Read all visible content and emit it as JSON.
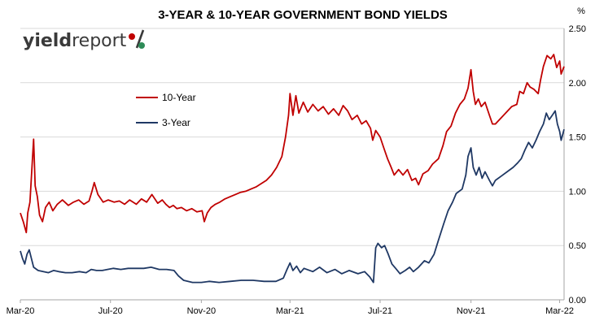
{
  "logo": {
    "part1": "yield",
    "part2": "report",
    "symbol": "%",
    "symbol_colors": [
      "#c00000",
      "#2e8b57"
    ]
  },
  "chart_data": {
    "type": "line",
    "title": "3-YEAR & 10-YEAR GOVERNMENT BOND YIELDS",
    "ylabel": "%",
    "ylim": [
      0,
      2.5
    ],
    "yticks": [
      "0.00",
      "0.50",
      "1.00",
      "1.50",
      "2.00",
      "2.50"
    ],
    "xticks": [
      "Mar-20",
      "Jul-20",
      "Nov-20",
      "Mar-21",
      "Jul-21",
      "Nov-21",
      "Mar-22"
    ],
    "xlim": [
      "2020-03-01",
      "2022-03-07"
    ],
    "grid": "horizontal",
    "legend_position": "upper-left",
    "series": [
      {
        "name": "10-Year",
        "color": "#c00000",
        "points": [
          [
            "2020-03-01",
            0.8
          ],
          [
            "2020-03-05",
            0.72
          ],
          [
            "2020-03-09",
            0.62
          ],
          [
            "2020-03-11",
            0.8
          ],
          [
            "2020-03-14",
            0.9
          ],
          [
            "2020-03-17",
            1.25
          ],
          [
            "2020-03-19",
            1.48
          ],
          [
            "2020-03-21",
            1.05
          ],
          [
            "2020-03-24",
            0.95
          ],
          [
            "2020-03-27",
            0.78
          ],
          [
            "2020-03-31",
            0.72
          ],
          [
            "2020-04-04",
            0.85
          ],
          [
            "2020-04-09",
            0.9
          ],
          [
            "2020-04-14",
            0.82
          ],
          [
            "2020-04-20",
            0.88
          ],
          [
            "2020-04-27",
            0.92
          ],
          [
            "2020-05-05",
            0.87
          ],
          [
            "2020-05-12",
            0.9
          ],
          [
            "2020-05-19",
            0.92
          ],
          [
            "2020-05-26",
            0.88
          ],
          [
            "2020-06-02",
            0.91
          ],
          [
            "2020-06-06",
            1.0
          ],
          [
            "2020-06-09",
            1.08
          ],
          [
            "2020-06-14",
            0.97
          ],
          [
            "2020-06-21",
            0.9
          ],
          [
            "2020-06-28",
            0.92
          ],
          [
            "2020-07-06",
            0.9
          ],
          [
            "2020-07-13",
            0.91
          ],
          [
            "2020-07-20",
            0.88
          ],
          [
            "2020-07-27",
            0.92
          ],
          [
            "2020-08-05",
            0.88
          ],
          [
            "2020-08-12",
            0.93
          ],
          [
            "2020-08-19",
            0.9
          ],
          [
            "2020-08-26",
            0.97
          ],
          [
            "2020-09-03",
            0.89
          ],
          [
            "2020-09-09",
            0.92
          ],
          [
            "2020-09-14",
            0.88
          ],
          [
            "2020-09-19",
            0.85
          ],
          [
            "2020-09-24",
            0.87
          ],
          [
            "2020-09-29",
            0.84
          ],
          [
            "2020-10-05",
            0.85
          ],
          [
            "2020-10-12",
            0.82
          ],
          [
            "2020-10-19",
            0.84
          ],
          [
            "2020-10-26",
            0.81
          ],
          [
            "2020-11-02",
            0.82
          ],
          [
            "2020-11-05",
            0.72
          ],
          [
            "2020-11-09",
            0.8
          ],
          [
            "2020-11-14",
            0.85
          ],
          [
            "2020-11-20",
            0.88
          ],
          [
            "2020-11-26",
            0.9
          ],
          [
            "2020-12-03",
            0.93
          ],
          [
            "2020-12-10",
            0.95
          ],
          [
            "2020-12-17",
            0.97
          ],
          [
            "2020-12-24",
            0.99
          ],
          [
            "2020-12-31",
            1.0
          ],
          [
            "2021-01-07",
            1.02
          ],
          [
            "2021-01-14",
            1.04
          ],
          [
            "2021-01-21",
            1.07
          ],
          [
            "2021-01-28",
            1.1
          ],
          [
            "2021-02-04",
            1.15
          ],
          [
            "2021-02-11",
            1.22
          ],
          [
            "2021-02-18",
            1.32
          ],
          [
            "2021-02-23",
            1.5
          ],
          [
            "2021-02-27",
            1.7
          ],
          [
            "2021-03-01",
            1.9
          ],
          [
            "2021-03-05",
            1.7
          ],
          [
            "2021-03-09",
            1.88
          ],
          [
            "2021-03-13",
            1.72
          ],
          [
            "2021-03-19",
            1.82
          ],
          [
            "2021-03-25",
            1.73
          ],
          [
            "2021-04-01",
            1.8
          ],
          [
            "2021-04-08",
            1.74
          ],
          [
            "2021-04-15",
            1.78
          ],
          [
            "2021-04-22",
            1.71
          ],
          [
            "2021-04-29",
            1.76
          ],
          [
            "2021-05-06",
            1.7
          ],
          [
            "2021-05-12",
            1.79
          ],
          [
            "2021-05-18",
            1.74
          ],
          [
            "2021-05-24",
            1.66
          ],
          [
            "2021-05-31",
            1.7
          ],
          [
            "2021-06-06",
            1.62
          ],
          [
            "2021-06-12",
            1.65
          ],
          [
            "2021-06-18",
            1.58
          ],
          [
            "2021-06-21",
            1.47
          ],
          [
            "2021-06-25",
            1.56
          ],
          [
            "2021-07-01",
            1.5
          ],
          [
            "2021-07-06",
            1.4
          ],
          [
            "2021-07-11",
            1.3
          ],
          [
            "2021-07-16",
            1.22
          ],
          [
            "2021-07-20",
            1.15
          ],
          [
            "2021-07-26",
            1.2
          ],
          [
            "2021-08-01",
            1.15
          ],
          [
            "2021-08-07",
            1.2
          ],
          [
            "2021-08-13",
            1.1
          ],
          [
            "2021-08-18",
            1.12
          ],
          [
            "2021-08-22",
            1.06
          ],
          [
            "2021-08-28",
            1.16
          ],
          [
            "2021-09-04",
            1.19
          ],
          [
            "2021-09-10",
            1.25
          ],
          [
            "2021-09-18",
            1.3
          ],
          [
            "2021-09-24",
            1.42
          ],
          [
            "2021-09-29",
            1.55
          ],
          [
            "2021-10-05",
            1.6
          ],
          [
            "2021-10-11",
            1.72
          ],
          [
            "2021-10-17",
            1.8
          ],
          [
            "2021-10-23",
            1.85
          ],
          [
            "2021-10-28",
            1.95
          ],
          [
            "2021-11-01",
            2.12
          ],
          [
            "2021-11-04",
            1.92
          ],
          [
            "2021-11-07",
            1.8
          ],
          [
            "2021-11-11",
            1.85
          ],
          [
            "2021-11-15",
            1.78
          ],
          [
            "2021-11-20",
            1.82
          ],
          [
            "2021-11-26",
            1.7
          ],
          [
            "2021-11-30",
            1.62
          ],
          [
            "2021-12-04",
            1.62
          ],
          [
            "2021-12-26",
            1.78
          ],
          [
            "2022-01-02",
            1.8
          ],
          [
            "2022-01-06",
            1.92
          ],
          [
            "2022-01-11",
            1.9
          ],
          [
            "2022-01-16",
            2.0
          ],
          [
            "2022-01-20",
            1.96
          ],
          [
            "2022-01-25",
            1.94
          ],
          [
            "2022-01-31",
            1.9
          ],
          [
            "2022-02-03",
            2.02
          ],
          [
            "2022-02-07",
            2.15
          ],
          [
            "2022-02-12",
            2.25
          ],
          [
            "2022-02-17",
            2.22
          ],
          [
            "2022-02-21",
            2.26
          ],
          [
            "2022-02-25",
            2.14
          ],
          [
            "2022-03-01",
            2.2
          ],
          [
            "2022-03-03",
            2.08
          ],
          [
            "2022-03-07",
            2.15
          ]
        ]
      },
      {
        "name": "3-Year",
        "color": "#1f3864",
        "points": [
          [
            "2020-03-01",
            0.45
          ],
          [
            "2020-03-04",
            0.38
          ],
          [
            "2020-03-07",
            0.33
          ],
          [
            "2020-03-10",
            0.42
          ],
          [
            "2020-03-13",
            0.46
          ],
          [
            "2020-03-16",
            0.38
          ],
          [
            "2020-03-19",
            0.3
          ],
          [
            "2020-03-25",
            0.27
          ],
          [
            "2020-04-01",
            0.26
          ],
          [
            "2020-04-08",
            0.25
          ],
          [
            "2020-04-15",
            0.27
          ],
          [
            "2020-04-22",
            0.26
          ],
          [
            "2020-05-01",
            0.25
          ],
          [
            "2020-05-10",
            0.25
          ],
          [
            "2020-05-20",
            0.26
          ],
          [
            "2020-05-29",
            0.25
          ],
          [
            "2020-06-05",
            0.28
          ],
          [
            "2020-06-12",
            0.27
          ],
          [
            "2020-06-20",
            0.27
          ],
          [
            "2020-06-27",
            0.28
          ],
          [
            "2020-07-05",
            0.29
          ],
          [
            "2020-07-15",
            0.28
          ],
          [
            "2020-07-25",
            0.29
          ],
          [
            "2020-08-05",
            0.29
          ],
          [
            "2020-08-15",
            0.29
          ],
          [
            "2020-08-25",
            0.3
          ],
          [
            "2020-09-05",
            0.28
          ],
          [
            "2020-09-15",
            0.28
          ],
          [
            "2020-09-25",
            0.27
          ],
          [
            "2020-10-01",
            0.22
          ],
          [
            "2020-10-08",
            0.18
          ],
          [
            "2020-10-20",
            0.16
          ],
          [
            "2020-11-01",
            0.16
          ],
          [
            "2020-11-12",
            0.17
          ],
          [
            "2020-11-25",
            0.16
          ],
          [
            "2020-12-10",
            0.17
          ],
          [
            "2020-12-25",
            0.18
          ],
          [
            "2021-01-10",
            0.18
          ],
          [
            "2021-01-25",
            0.17
          ],
          [
            "2021-02-10",
            0.17
          ],
          [
            "2021-02-20",
            0.2
          ],
          [
            "2021-02-25",
            0.28
          ],
          [
            "2021-03-01",
            0.34
          ],
          [
            "2021-03-05",
            0.27
          ],
          [
            "2021-03-10",
            0.31
          ],
          [
            "2021-03-15",
            0.25
          ],
          [
            "2021-03-20",
            0.29
          ],
          [
            "2021-04-01",
            0.26
          ],
          [
            "2021-04-10",
            0.3
          ],
          [
            "2021-04-20",
            0.25
          ],
          [
            "2021-05-01",
            0.28
          ],
          [
            "2021-05-10",
            0.24
          ],
          [
            "2021-05-20",
            0.27
          ],
          [
            "2021-06-01",
            0.24
          ],
          [
            "2021-06-10",
            0.26
          ],
          [
            "2021-06-17",
            0.21
          ],
          [
            "2021-06-22",
            0.16
          ],
          [
            "2021-06-25",
            0.48
          ],
          [
            "2021-06-28",
            0.52
          ],
          [
            "2021-07-03",
            0.48
          ],
          [
            "2021-07-07",
            0.5
          ],
          [
            "2021-07-12",
            0.42
          ],
          [
            "2021-07-17",
            0.33
          ],
          [
            "2021-07-22",
            0.29
          ],
          [
            "2021-07-28",
            0.24
          ],
          [
            "2021-08-04",
            0.27
          ],
          [
            "2021-08-10",
            0.3
          ],
          [
            "2021-08-15",
            0.26
          ],
          [
            "2021-08-22",
            0.3
          ],
          [
            "2021-08-30",
            0.36
          ],
          [
            "2021-09-05",
            0.34
          ],
          [
            "2021-09-12",
            0.42
          ],
          [
            "2021-09-18",
            0.55
          ],
          [
            "2021-09-25",
            0.7
          ],
          [
            "2021-10-01",
            0.82
          ],
          [
            "2021-10-07",
            0.9
          ],
          [
            "2021-10-12",
            0.98
          ],
          [
            "2021-10-20",
            1.02
          ],
          [
            "2021-10-25",
            1.15
          ],
          [
            "2021-10-28",
            1.32
          ],
          [
            "2021-11-01",
            1.4
          ],
          [
            "2021-11-04",
            1.22
          ],
          [
            "2021-11-08",
            1.15
          ],
          [
            "2021-11-12",
            1.22
          ],
          [
            "2021-11-16",
            1.12
          ],
          [
            "2021-11-20",
            1.18
          ],
          [
            "2021-11-26",
            1.1
          ],
          [
            "2021-11-30",
            1.05
          ],
          [
            "2021-12-04",
            1.1
          ],
          [
            "2021-12-12",
            1.14
          ],
          [
            "2021-12-20",
            1.18
          ],
          [
            "2021-12-28",
            1.22
          ],
          [
            "2022-01-03",
            1.26
          ],
          [
            "2022-01-08",
            1.3
          ],
          [
            "2022-01-13",
            1.38
          ],
          [
            "2022-01-18",
            1.45
          ],
          [
            "2022-01-23",
            1.4
          ],
          [
            "2022-01-28",
            1.47
          ],
          [
            "2022-02-02",
            1.55
          ],
          [
            "2022-02-07",
            1.62
          ],
          [
            "2022-02-11",
            1.72
          ],
          [
            "2022-02-15",
            1.66
          ],
          [
            "2022-02-19",
            1.7
          ],
          [
            "2022-02-23",
            1.74
          ],
          [
            "2022-02-26",
            1.62
          ],
          [
            "2022-03-01",
            1.55
          ],
          [
            "2022-03-03",
            1.47
          ],
          [
            "2022-03-07",
            1.57
          ]
        ]
      }
    ]
  }
}
